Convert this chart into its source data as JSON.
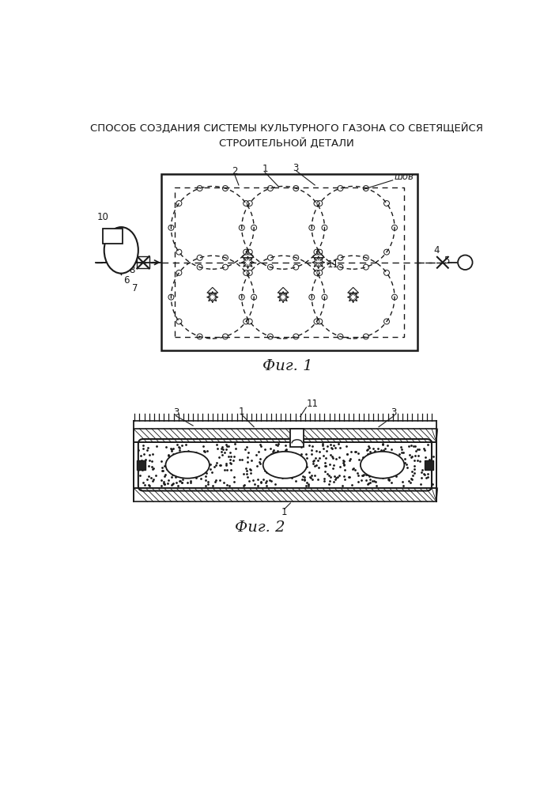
{
  "title_line1": "СПОСОБ СОЗДАНИЯ СИСТЕМЫ КУЛЬТУРНОГО ГАЗОНА СО СВЕТЯЩЕЙСЯ",
  "title_line2": "СТРОИТЕЛЬНОЙ ДЕТАЛИ",
  "fig1_caption": "Фиг. 1",
  "fig2_caption": "Фиг. 2",
  "bg_color": "#ffffff",
  "line_color": "#1a1a1a"
}
